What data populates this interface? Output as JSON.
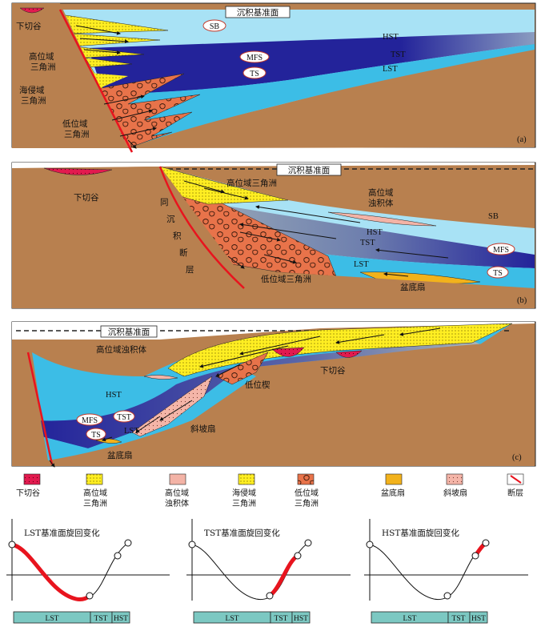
{
  "panels": [
    {
      "id": "a",
      "tag": "(a)",
      "baselevel": "沉积基准面",
      "labels": {
        "incised_valley": "下切谷",
        "hst_delta": "高位域\n三角洲",
        "transgressive_delta": "海侵域\n三角洲",
        "lst_delta": "低位域\n三角洲",
        "sb": "SB",
        "mfs": "MFS",
        "ts": "TS",
        "hst": "HST",
        "tst": "TST",
        "lst": "LST"
      }
    },
    {
      "id": "b",
      "tag": "(b)",
      "baselevel": "沉积基准面",
      "labels": {
        "incised_valley": "下切谷",
        "hst_delta": "高位域三角洲",
        "hst_turbidite": "高位域\n浊积体",
        "growth_fault": [
          "同",
          "沉",
          "积",
          "断",
          "层"
        ],
        "lst_delta": "低位域三角洲",
        "basin_fan": "盆底扇",
        "sb": "SB",
        "hst": "HST",
        "tst": "TST",
        "lst": "LST",
        "mfs": "MFS",
        "ts": "TS"
      }
    },
    {
      "id": "c",
      "tag": "(c)",
      "baselevel": "沉积基准面",
      "labels": {
        "hst_turbidite": "高位域浊积体",
        "incised_valley": "下切谷",
        "lowstand_wedge": "低位楔",
        "hst": "HST",
        "mfs": "MFS",
        "tst": "TST",
        "ts": "TS",
        "lst": "LST",
        "slope_fan": "斜坡扇",
        "basin_fan": "盆底扇"
      }
    }
  ],
  "legend": [
    {
      "name": "incised-valley",
      "label": "下切谷"
    },
    {
      "name": "hst-delta",
      "label": "高位域\n三角洲"
    },
    {
      "name": "hst-turbidite",
      "label": "高位域\n浊积体"
    },
    {
      "name": "transgressive-delta",
      "label": "海侵域\n三角洲"
    },
    {
      "name": "lst-delta",
      "label": "低位域\n三角洲"
    },
    {
      "name": "basin-fan",
      "label": "盆底扇"
    },
    {
      "name": "slope-fan",
      "label": "斜坡扇"
    },
    {
      "name": "fault",
      "label": "断层"
    }
  ],
  "cycles": [
    {
      "title": "LST基准面旋回变化",
      "highlight": "LST",
      "bar": [
        "LST",
        "TST",
        "HST"
      ]
    },
    {
      "title": "TST基准面旋回变化",
      "highlight": "TST",
      "bar": [
        "LST",
        "TST",
        "HST"
      ]
    },
    {
      "title": "HST基准面旋回变化",
      "highlight": "HST",
      "bar": [
        "LST",
        "TST",
        "HST"
      ]
    }
  ],
  "colors": {
    "land": "#b8804f",
    "sea_light": "#a8e2f5",
    "sea_mid": "#3cbde6",
    "sea_dark": "#23239a",
    "sea_tst": "#6e7fae",
    "delta_yellow": "#ffee22",
    "lst_orange": "#e8734a",
    "valley_red": "#e21a4f",
    "fault_red": "#e8141e",
    "turbidite_pink": "#f3b3a6",
    "basin_fan": "#f2b21c",
    "bar_fill": "#7cc8c2"
  }
}
